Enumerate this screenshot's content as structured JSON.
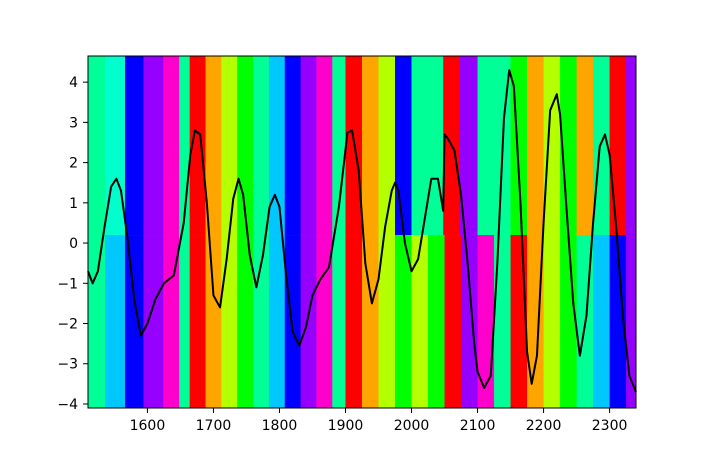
{
  "chart_data": {
    "type": "line",
    "title": "",
    "xlabel": "",
    "ylabel": "",
    "xlim": [
      1510,
      2340
    ],
    "ylim": [
      -4.1,
      4.65
    ],
    "xticks": [
      1600,
      1700,
      1800,
      1900,
      2000,
      2100,
      2200,
      2300
    ],
    "yticks": [
      -4,
      -3,
      -2,
      -1,
      0,
      1,
      2,
      3,
      4
    ],
    "grid": false,
    "series": [
      {
        "name": "",
        "color": "#000000",
        "x": [
          1510,
          1517,
          1525,
          1535,
          1545,
          1553,
          1560,
          1570,
          1580,
          1590,
          1600,
          1612,
          1625,
          1640,
          1655,
          1665,
          1672,
          1680,
          1690,
          1700,
          1710,
          1720,
          1730,
          1738,
          1745,
          1755,
          1765,
          1775,
          1785,
          1793,
          1800,
          1810,
          1820,
          1830,
          1840,
          1850,
          1862,
          1875,
          1890,
          1903,
          1910,
          1920,
          1930,
          1940,
          1950,
          1960,
          1970,
          1975,
          1980,
          1990,
          2000,
          2010,
          2020,
          2030,
          2040,
          2048,
          2050,
          2055,
          2065,
          2075,
          2085,
          2095,
          2100,
          2110,
          2120,
          2130,
          2140,
          2148,
          2155,
          2165,
          2175,
          2182,
          2190,
          2200,
          2210,
          2220,
          2225,
          2235,
          2245,
          2255,
          2265,
          2275,
          2285,
          2293,
          2300,
          2310,
          2320,
          2330,
          2340
        ],
        "values": [
          -0.7,
          -1.0,
          -0.7,
          0.4,
          1.4,
          1.6,
          1.3,
          0.1,
          -1.4,
          -2.3,
          -2.0,
          -1.4,
          -1.0,
          -0.8,
          0.5,
          2.2,
          2.8,
          2.7,
          1.0,
          -1.3,
          -1.6,
          -0.4,
          1.1,
          1.6,
          1.2,
          -0.3,
          -1.1,
          -0.3,
          0.9,
          1.2,
          0.9,
          -0.8,
          -2.2,
          -2.55,
          -2.1,
          -1.3,
          -0.9,
          -0.6,
          0.9,
          2.75,
          2.8,
          1.8,
          -0.5,
          -1.5,
          -0.9,
          0.4,
          1.3,
          1.5,
          1.3,
          0.0,
          -0.7,
          -0.4,
          0.6,
          1.6,
          1.6,
          0.8,
          2.7,
          2.6,
          2.3,
          1.2,
          -0.5,
          -2.5,
          -3.2,
          -3.6,
          -3.3,
          -0.5,
          3.1,
          4.3,
          3.9,
          1.0,
          -2.7,
          -3.5,
          -2.8,
          0.5,
          3.3,
          3.7,
          3.2,
          0.8,
          -1.5,
          -2.8,
          -1.8,
          0.5,
          2.4,
          2.7,
          2.2,
          0.4,
          -1.8,
          -3.3,
          -3.7
        ]
      }
    ],
    "background_bands": {
      "upper": [
        {
          "x0": 1510,
          "x1": 1536,
          "color": "#00ff96"
        },
        {
          "x0": 1536,
          "x1": 1566,
          "color": "#00ffcc"
        },
        {
          "x0": 1566,
          "x1": 1594,
          "color": "#0000ff"
        },
        {
          "x0": 1594,
          "x1": 1624,
          "color": "#9600ff"
        },
        {
          "x0": 1624,
          "x1": 1648,
          "color": "#ff00cc"
        },
        {
          "x0": 1648,
          "x1": 1664,
          "color": "#00ff96"
        },
        {
          "x0": 1664,
          "x1": 1688,
          "color": "#ff0000"
        },
        {
          "x0": 1688,
          "x1": 1712,
          "color": "#ffa500"
        },
        {
          "x0": 1712,
          "x1": 1736,
          "color": "#b4ff00"
        },
        {
          "x0": 1736,
          "x1": 1760,
          "color": "#00ff00"
        },
        {
          "x0": 1760,
          "x1": 1784,
          "color": "#00ff96"
        },
        {
          "x0": 1784,
          "x1": 1808,
          "color": "#00c8ff"
        },
        {
          "x0": 1808,
          "x1": 1832,
          "color": "#0000ff"
        },
        {
          "x0": 1832,
          "x1": 1856,
          "color": "#9600ff"
        },
        {
          "x0": 1856,
          "x1": 1880,
          "color": "#ff00cc"
        },
        {
          "x0": 1880,
          "x1": 1900,
          "color": "#00ff96"
        },
        {
          "x0": 1900,
          "x1": 1925,
          "color": "#ff0000"
        },
        {
          "x0": 1925,
          "x1": 1950,
          "color": "#ffa500"
        },
        {
          "x0": 1950,
          "x1": 1975,
          "color": "#b4ff00"
        },
        {
          "x0": 1975,
          "x1": 2000,
          "color": "#0000ff"
        },
        {
          "x0": 2000,
          "x1": 2048,
          "color": "#00ff96"
        },
        {
          "x0": 2048,
          "x1": 2072,
          "color": "#ff0000"
        },
        {
          "x0": 2072,
          "x1": 2100,
          "color": "#9600ff"
        },
        {
          "x0": 2100,
          "x1": 2150,
          "color": "#00ff96"
        },
        {
          "x0": 2150,
          "x1": 2175,
          "color": "#00ff00"
        },
        {
          "x0": 2175,
          "x1": 2200,
          "color": "#ffa500"
        },
        {
          "x0": 2200,
          "x1": 2225,
          "color": "#b4ff00"
        },
        {
          "x0": 2225,
          "x1": 2250,
          "color": "#00ff00"
        },
        {
          "x0": 2250,
          "x1": 2275,
          "color": "#ffa500"
        },
        {
          "x0": 2275,
          "x1": 2300,
          "color": "#00ff96"
        },
        {
          "x0": 2300,
          "x1": 2325,
          "color": "#ff0000"
        },
        {
          "x0": 2325,
          "x1": 2340,
          "color": "#9600ff"
        }
      ],
      "lower": [
        {
          "x0": 1510,
          "x1": 1536,
          "color": "#00ff96"
        },
        {
          "x0": 1536,
          "x1": 1566,
          "color": "#00c8ff"
        },
        {
          "x0": 1566,
          "x1": 1594,
          "color": "#0000ff"
        },
        {
          "x0": 1594,
          "x1": 1624,
          "color": "#9600ff"
        },
        {
          "x0": 1624,
          "x1": 1648,
          "color": "#ff00cc"
        },
        {
          "x0": 1648,
          "x1": 1664,
          "color": "#00ff96"
        },
        {
          "x0": 1664,
          "x1": 1688,
          "color": "#ff0000"
        },
        {
          "x0": 1688,
          "x1": 1712,
          "color": "#ffa500"
        },
        {
          "x0": 1712,
          "x1": 1736,
          "color": "#b4ff00"
        },
        {
          "x0": 1736,
          "x1": 1760,
          "color": "#00ff00"
        },
        {
          "x0": 1760,
          "x1": 1784,
          "color": "#00ff96"
        },
        {
          "x0": 1784,
          "x1": 1808,
          "color": "#00c8ff"
        },
        {
          "x0": 1808,
          "x1": 1832,
          "color": "#0000ff"
        },
        {
          "x0": 1832,
          "x1": 1856,
          "color": "#9600ff"
        },
        {
          "x0": 1856,
          "x1": 1880,
          "color": "#ff00cc"
        },
        {
          "x0": 1880,
          "x1": 1900,
          "color": "#00ff96"
        },
        {
          "x0": 1900,
          "x1": 1925,
          "color": "#ff0000"
        },
        {
          "x0": 1925,
          "x1": 1950,
          "color": "#ffa500"
        },
        {
          "x0": 1950,
          "x1": 1975,
          "color": "#b4ff00"
        },
        {
          "x0": 1975,
          "x1": 2000,
          "color": "#00ff00"
        },
        {
          "x0": 2000,
          "x1": 2025,
          "color": "#b4ff00"
        },
        {
          "x0": 2025,
          "x1": 2050,
          "color": "#00ff00"
        },
        {
          "x0": 2050,
          "x1": 2075,
          "color": "#ff0000"
        },
        {
          "x0": 2075,
          "x1": 2100,
          "color": "#9600ff"
        },
        {
          "x0": 2100,
          "x1": 2125,
          "color": "#ff00cc"
        },
        {
          "x0": 2125,
          "x1": 2150,
          "color": "#00ff96"
        },
        {
          "x0": 2150,
          "x1": 2175,
          "color": "#ff0000"
        },
        {
          "x0": 2175,
          "x1": 2200,
          "color": "#ffa500"
        },
        {
          "x0": 2200,
          "x1": 2225,
          "color": "#b4ff00"
        },
        {
          "x0": 2225,
          "x1": 2250,
          "color": "#00ff00"
        },
        {
          "x0": 2250,
          "x1": 2275,
          "color": "#00ff96"
        },
        {
          "x0": 2275,
          "x1": 2300,
          "color": "#00c8ff"
        },
        {
          "x0": 2300,
          "x1": 2325,
          "color": "#0000ff"
        },
        {
          "x0": 2325,
          "x1": 2340,
          "color": "#9600ff"
        }
      ],
      "split_y": 0.2
    }
  }
}
